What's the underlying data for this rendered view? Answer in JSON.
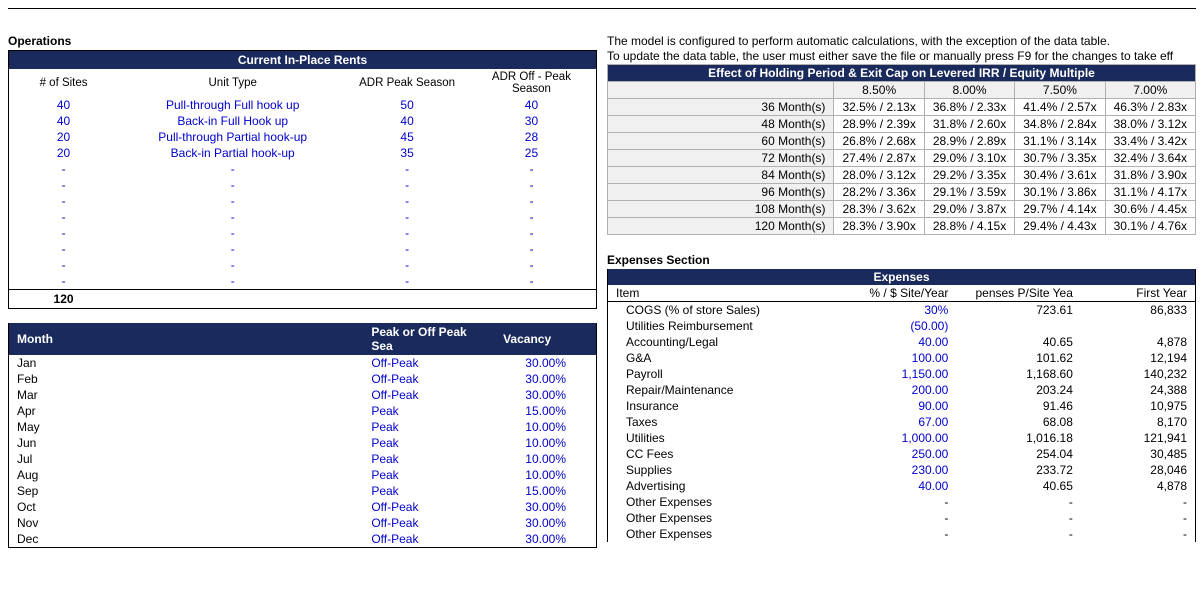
{
  "colors": {
    "navy": "#1a2a5c",
    "blue": "#0000cc",
    "grayFill": "#f0f0f0",
    "border": "#b0b0b0"
  },
  "operations": {
    "title": "Operations",
    "rentsHeader": "Current In-Place Rents",
    "cols": {
      "sites": "# of Sites",
      "unit": "Unit Type",
      "adrPeak": "ADR Peak Season",
      "adrOff": "ADR Off - Peak Season"
    },
    "rows": [
      {
        "sites": "40",
        "unit": "Pull-through Full hook up",
        "peak": "50",
        "off": "40"
      },
      {
        "sites": "40",
        "unit": "Back-in Full Hook up",
        "peak": "40",
        "off": "30"
      },
      {
        "sites": "20",
        "unit": "Pull-through Partial hook-up",
        "peak": "45",
        "off": "28"
      },
      {
        "sites": "20",
        "unit": "Back-in Partial hook-up",
        "peak": "35",
        "off": "25"
      }
    ],
    "emptyRows": 8,
    "total": "120"
  },
  "months": {
    "cols": {
      "month": "Month",
      "sea": "Peak  or Off Peak Sea",
      "vac": "Vacancy"
    },
    "rows": [
      {
        "m": "Jan",
        "s": "Off-Peak",
        "v": "30.00%"
      },
      {
        "m": "Feb",
        "s": "Off-Peak",
        "v": "30.00%"
      },
      {
        "m": "Mar",
        "s": "Off-Peak",
        "v": "30.00%"
      },
      {
        "m": "Apr",
        "s": "Peak",
        "v": "15.00%"
      },
      {
        "m": "May",
        "s": "Peak",
        "v": "10.00%"
      },
      {
        "m": "Jun",
        "s": "Peak",
        "v": "10.00%"
      },
      {
        "m": "Jul",
        "s": "Peak",
        "v": "10.00%"
      },
      {
        "m": "Aug",
        "s": "Peak",
        "v": "10.00%"
      },
      {
        "m": "Sep",
        "s": "Peak",
        "v": "15.00%"
      },
      {
        "m": "Oct",
        "s": "Off-Peak",
        "v": "30.00%"
      },
      {
        "m": "Nov",
        "s": "Off-Peak",
        "v": "30.00%"
      },
      {
        "m": "Dec",
        "s": "Off-Peak",
        "v": "30.00%"
      }
    ]
  },
  "notes": {
    "n1": "The model is configured to perform automatic calculations, with the exception of the data table.",
    "n2": "To update the data table, the user must either save the file or manually press F9 for the changes to take eff"
  },
  "sens": {
    "title": "Effect of Holding Period & Exit Cap on Levered IRR / Equity Multiple",
    "cols": [
      "8.50%",
      "8.00%",
      "7.50%",
      "7.00%"
    ],
    "rows": [
      {
        "label": "36 Month(s)",
        "v": [
          "32.5% / 2.13x",
          "36.8% / 2.33x",
          "41.4% / 2.57x",
          "46.3% / 2.83x"
        ]
      },
      {
        "label": "48 Month(s)",
        "v": [
          "28.9% / 2.39x",
          "31.8% / 2.60x",
          "34.8% / 2.84x",
          "38.0% / 3.12x"
        ]
      },
      {
        "label": "60 Month(s)",
        "v": [
          "26.8% / 2.68x",
          "28.9% / 2.89x",
          "31.1% / 3.14x",
          "33.4% / 3.42x"
        ]
      },
      {
        "label": "72 Month(s)",
        "v": [
          "27.4% / 2.87x",
          "29.0% / 3.10x",
          "30.7% / 3.35x",
          "32.4% / 3.64x"
        ]
      },
      {
        "label": "84 Month(s)",
        "v": [
          "28.0% / 3.12x",
          "29.2% / 3.35x",
          "30.4% / 3.61x",
          "31.8% / 3.90x"
        ]
      },
      {
        "label": "96 Month(s)",
        "v": [
          "28.2% / 3.36x",
          "29.1% / 3.59x",
          "30.1% / 3.86x",
          "31.1% / 4.17x"
        ]
      },
      {
        "label": "108 Month(s)",
        "v": [
          "28.3% / 3.62x",
          "29.0% / 3.87x",
          "29.7% / 4.14x",
          "30.6% / 4.45x"
        ]
      },
      {
        "label": "120 Month(s)",
        "v": [
          "28.3% / 3.90x",
          "28.8% / 4.15x",
          "29.4% / 4.43x",
          "30.1% / 4.76x"
        ]
      }
    ]
  },
  "expenses": {
    "sectionTitle": "Expenses Section",
    "header": "Expenses",
    "cols": {
      "item": "Item",
      "pct": "% / $ Site/Year",
      "pps": "penses P/Site Yea",
      "fy": "First Year"
    },
    "rows": [
      {
        "item": "COGS (% of store Sales)",
        "pct": "30%",
        "pps": "723.61",
        "fy": "86,833",
        "pctBlue": true,
        "indent": true
      },
      {
        "item": "Utilities Reimbursement",
        "pct": "(50.00)",
        "pps": "",
        "fy": "",
        "pctBlue": true,
        "indent": true
      },
      {
        "item": "Accounting/Legal",
        "pct": "40.00",
        "pps": "40.65",
        "fy": "4,878",
        "pctBlue": true,
        "indent": true
      },
      {
        "item": "G&A",
        "pct": "100.00",
        "pps": "101.62",
        "fy": "12,194",
        "pctBlue": true,
        "indent": true
      },
      {
        "item": "Payroll",
        "pct": "1,150.00",
        "pps": "1,168.60",
        "fy": "140,232",
        "pctBlue": true,
        "indent": true
      },
      {
        "item": "Repair/Maintenance",
        "pct": "200.00",
        "pps": "203.24",
        "fy": "24,388",
        "pctBlue": true,
        "indent": true
      },
      {
        "item": "Insurance",
        "pct": "90.00",
        "pps": "91.46",
        "fy": "10,975",
        "pctBlue": true,
        "indent": true
      },
      {
        "item": "Taxes",
        "pct": "67.00",
        "pps": "68.08",
        "fy": "8,170",
        "pctBlue": true,
        "indent": true
      },
      {
        "item": "Utilities",
        "pct": "1,000.00",
        "pps": "1,016.18",
        "fy": "121,941",
        "pctBlue": true,
        "indent": true
      },
      {
        "item": "CC Fees",
        "pct": "250.00",
        "pps": "254.04",
        "fy": "30,485",
        "pctBlue": true,
        "indent": true
      },
      {
        "item": "Supplies",
        "pct": "230.00",
        "pps": "233.72",
        "fy": "28,046",
        "pctBlue": true,
        "indent": true
      },
      {
        "item": "Advertising",
        "pct": "40.00",
        "pps": "40.65",
        "fy": "4,878",
        "pctBlue": true,
        "indent": true
      },
      {
        "item": "Other Expenses",
        "pct": "-",
        "pps": "-",
        "fy": "-",
        "dash": true,
        "indent": true
      },
      {
        "item": "Other Expenses",
        "pct": "-",
        "pps": "-",
        "fy": "-",
        "dash": true,
        "indent": true
      },
      {
        "item": "Other Expenses",
        "pct": "-",
        "pps": "-",
        "fy": "-",
        "dash": true,
        "indent": true
      }
    ]
  }
}
